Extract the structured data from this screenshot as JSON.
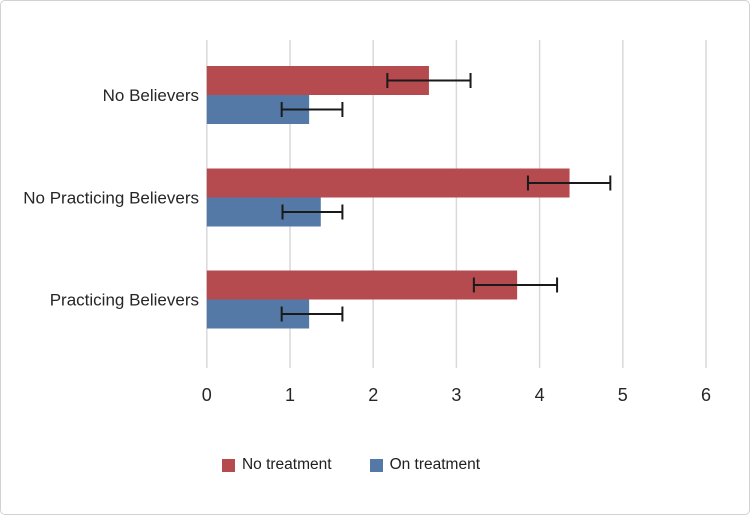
{
  "chart_data": {
    "type": "bar",
    "orientation": "horizontal",
    "title": "",
    "xlabel": "",
    "ylabel": "",
    "categories": [
      "No Believers",
      "No Practicing Believers",
      "Practicing Believers"
    ],
    "series": [
      {
        "name": "No treatment",
        "color": "#b54b4f",
        "values": [
          2.67,
          4.36,
          3.73
        ],
        "error_low": [
          2.17,
          3.86,
          3.21
        ],
        "error_high": [
          3.17,
          4.85,
          4.21
        ]
      },
      {
        "name": "On treatment",
        "color": "#5479a6",
        "values": [
          1.23,
          1.37,
          1.23
        ],
        "error_low": [
          0.9,
          0.91,
          0.9
        ],
        "error_high": [
          1.63,
          1.63,
          1.63
        ]
      }
    ],
    "x_ticks": [
      "0",
      "1",
      "2",
      "3",
      "4",
      "5",
      "6"
    ],
    "xlim": [
      0,
      6
    ],
    "grid": "vertical",
    "legend_position": "bottom",
    "gridline_color": "#d9d9d9",
    "error_bar_color": "#1a1a1a",
    "text_color": "#262626"
  }
}
